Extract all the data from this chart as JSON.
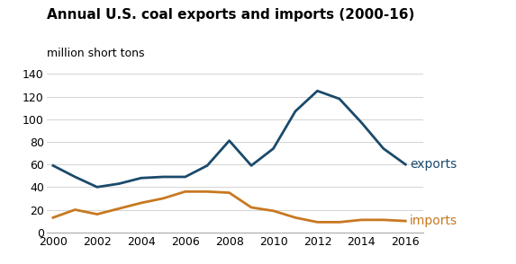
{
  "title": "Annual U.S. coal exports and imports (2000-16)",
  "ylabel": "million short tons",
  "years": [
    2000,
    2001,
    2002,
    2003,
    2004,
    2005,
    2006,
    2007,
    2008,
    2009,
    2010,
    2011,
    2012,
    2013,
    2014,
    2015,
    2016
  ],
  "exports": [
    59,
    49,
    40,
    43,
    48,
    49,
    49,
    59,
    81,
    59,
    74,
    107,
    125,
    118,
    97,
    74,
    60
  ],
  "imports": [
    13,
    20,
    16,
    21,
    26,
    30,
    36,
    36,
    35,
    22,
    19,
    13,
    9,
    9,
    11,
    11,
    10
  ],
  "exports_color": "#1a4a6b",
  "imports_color": "#c87820",
  "background_color": "#ffffff",
  "grid_color": "#cccccc",
  "ylim": [
    0,
    140
  ],
  "yticks": [
    0,
    20,
    40,
    60,
    80,
    100,
    120,
    140
  ],
  "xticks": [
    2000,
    2002,
    2004,
    2006,
    2008,
    2010,
    2012,
    2014,
    2016
  ],
  "exports_label": "exports",
  "imports_label": "imports",
  "tick_fontsize": 9,
  "label_fontsize": 10,
  "title_fontsize": 11,
  "subtitle_fontsize": 9,
  "line_width": 2.0,
  "xlim_right": 2016.8
}
